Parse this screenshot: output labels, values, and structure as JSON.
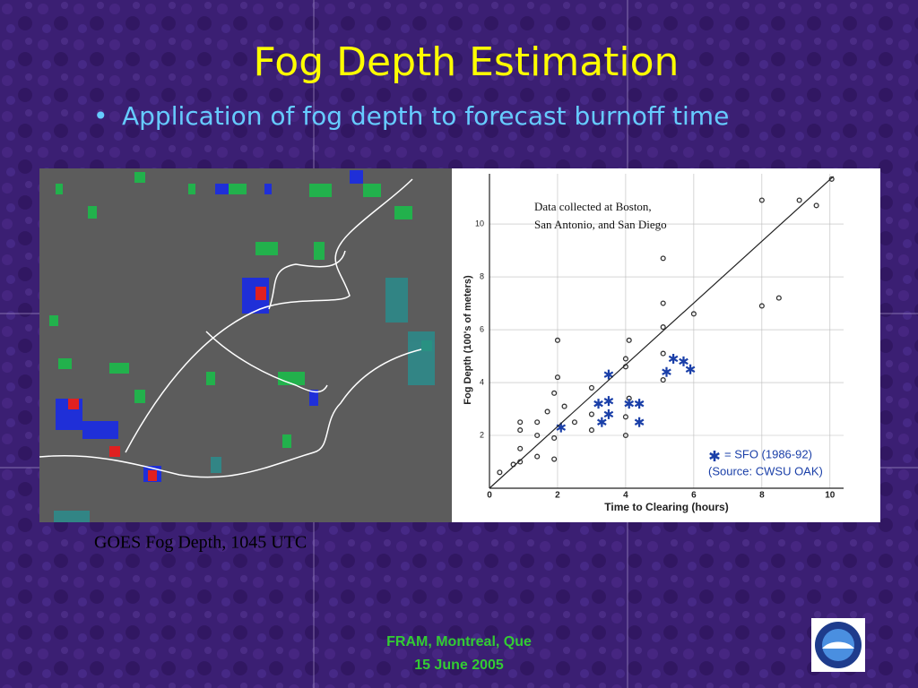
{
  "title": "Fog Depth Estimation",
  "bullets": [
    "Application of fog depth to forecast burnoff time"
  ],
  "map_caption": "GOES Fog Depth, 1045 UTC",
  "footer": [
    "FRAM, Montreal, Que",
    "15 June 2005"
  ],
  "chart_data": {
    "type": "scatter",
    "annotation": [
      "Data collected at Boston,",
      "San Antonio, and San Diego"
    ],
    "xlabel": "Time to Clearing (hours)",
    "ylabel": "Fog Depth (100's of meters)",
    "xlim": [
      0,
      10.4
    ],
    "ylim": [
      0,
      11.9
    ],
    "xticks": [
      0,
      2,
      4,
      6,
      8,
      10
    ],
    "yticks": [
      2,
      4,
      6,
      8,
      10
    ],
    "grid": true,
    "source_note": "(Source: CWSU OAK)",
    "series": [
      {
        "marker": "circle",
        "color": "#333333",
        "x": [
          10.05,
          9.6,
          9.1,
          8.0,
          5.1,
          8.5,
          8.0,
          5.1,
          6.0,
          5.1,
          2.0,
          4.1,
          4.0,
          4.0,
          5.1,
          3.0,
          1.9,
          2.2,
          1.7,
          3.0,
          0.9,
          1.4,
          0.9,
          1.4,
          1.9,
          0.9,
          1.4,
          0.7,
          0.3,
          0.9,
          1.9,
          4.0,
          2.5,
          3.0,
          4.1,
          4.0,
          2.0,
          5.1
        ],
        "values": [
          11.7,
          10.7,
          10.9,
          10.9,
          8.7,
          7.2,
          6.9,
          7.0,
          6.6,
          6.1,
          5.6,
          5.6,
          4.9,
          4.6,
          4.1,
          3.8,
          3.6,
          3.1,
          2.9,
          2.8,
          2.5,
          2.5,
          2.2,
          2.0,
          1.9,
          1.5,
          1.2,
          0.9,
          0.6,
          1.0,
          1.1,
          2.0,
          2.5,
          2.2,
          3.4,
          2.7,
          4.2,
          5.1
        ]
      },
      {
        "name": "= SFO (1986-92)",
        "marker": "star",
        "color": "#1a3fa8",
        "x": [
          3.5,
          5.4,
          5.7,
          5.2,
          5.9,
          3.2,
          3.5,
          3.5,
          4.1,
          4.4,
          4.4,
          3.3,
          2.1
        ],
        "values": [
          4.3,
          4.9,
          4.8,
          4.4,
          4.5,
          3.2,
          3.3,
          2.8,
          3.2,
          3.2,
          2.5,
          2.5,
          2.3
        ]
      },
      {
        "marker": "line",
        "color": "#222222",
        "x": [
          0,
          10.1
        ],
        "values": [
          0,
          11.8
        ]
      }
    ]
  }
}
